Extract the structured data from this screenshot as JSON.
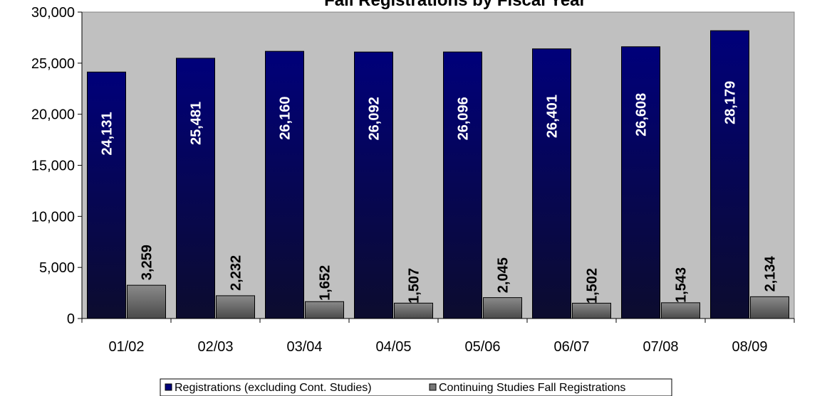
{
  "chart_data": {
    "type": "bar",
    "title": "Fall Registrations by Fiscal Year",
    "categories": [
      "01/02",
      "02/03",
      "03/04",
      "04/05",
      "05/06",
      "06/07",
      "07/08",
      "08/09"
    ],
    "series": [
      {
        "name": "Registrations (excluding Cont. Studies)",
        "values": [
          24131,
          25481,
          26160,
          26092,
          26096,
          26401,
          26608,
          28179
        ],
        "labels": [
          "24,131",
          "25,481",
          "26,160",
          "26,092",
          "26,096",
          "26,401",
          "26,608",
          "28,179"
        ]
      },
      {
        "name": "Continuing Studies Fall Registrations",
        "values": [
          3259,
          2232,
          1652,
          1507,
          2045,
          1502,
          1543,
          2134
        ],
        "labels": [
          "3,259",
          "2,232",
          "1,652",
          "1,507",
          "2,045",
          "1,502",
          "1,543",
          "2,134"
        ]
      }
    ],
    "ylim": [
      0,
      30000
    ],
    "yticks": [
      0,
      5000,
      10000,
      15000,
      20000,
      25000,
      30000
    ],
    "ytick_labels": [
      "0",
      "5,000",
      "10,000",
      "15,000",
      "20,000",
      "25,000",
      "30,000"
    ],
    "grid": false,
    "legend_position": "bottom",
    "colors": {
      "plot_background": "#c0c0c0",
      "series1_top": "#00007a",
      "series1_bottom": "#0c0c2e",
      "series2_top": "#8a8a8a",
      "series2_bottom": "#4a4a4a"
    }
  }
}
